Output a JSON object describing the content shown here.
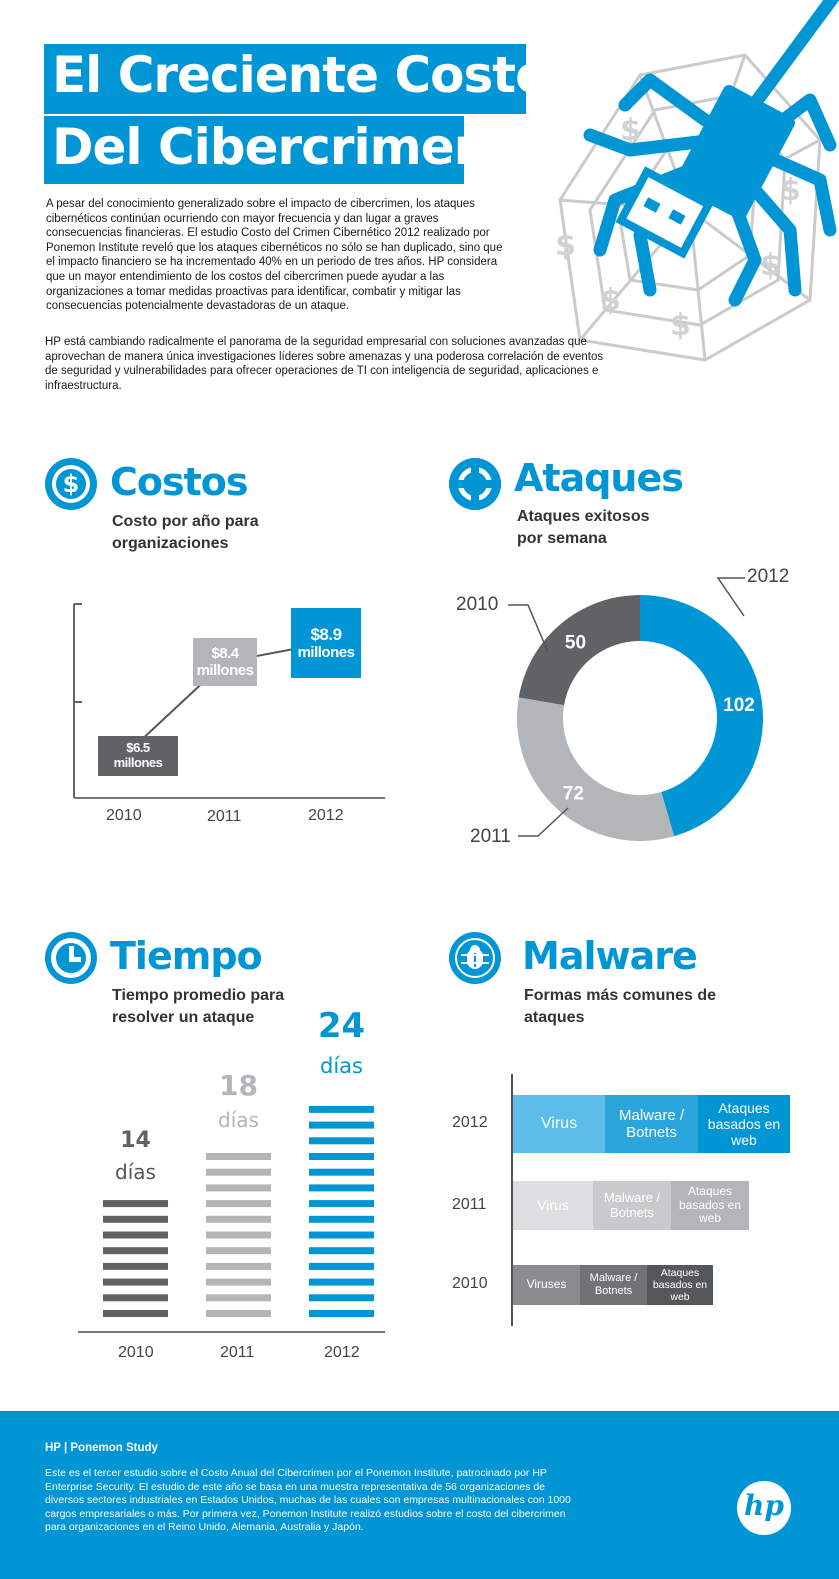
{
  "header": {
    "title_line1": "El Creciente Costo",
    "title_line2": "Del Cibercrimen!"
  },
  "intro": {
    "paragraph1": "A pesar del conocimiento generalizado  sobre el impacto de cibercrimen, los ataques cibernéticos continúan ocurriendo con mayor frecuencia  y dan lugar a graves consecuencias financieras.  El estudio Costo del Crimen Cibernético 2012 realizado por Ponemon Institute reveló que los ataques cibernéticos no sólo se han duplicado, sino que el impacto financiero se ha incrementado 40% en un periodo de tres años. HP considera que un mayor entendimiento de los costos del cibercrimen puede ayudar a las organizaciones a tomar medidas proactivas para identificar, combatir y mitigar las consecuencias potencialmente  devastadoras de un ataque.",
    "paragraph2": "HP está cambiando radicalmente el panorama de la seguridad empresarial con soluciones avanzadas que aprovechan de manera única investigaciones líderes sobre amenazas y una poderosa correlación de eventos de seguridad y vulnerabilidades para ofrecer operaciones de TI con inteligencia de seguridad, aplicaciones e infraestructura."
  },
  "costos": {
    "title": "Costos",
    "subtitle_l1": "Costo por año para",
    "subtitle_l2": "organizaciones",
    "icon": "dollar-icon"
  },
  "ataques": {
    "title": "Ataques",
    "subtitle_l1": "Ataques exitosos",
    "subtitle_l2": "por semana",
    "icon": "crosshair-icon"
  },
  "tiempo": {
    "title": "Tiempo",
    "subtitle_l1": "Tiempo promedio para",
    "subtitle_l2": "resolver un ataque",
    "icon": "clock-icon"
  },
  "malware": {
    "title": "Malware",
    "subtitle_l1": "Formas más comunes de",
    "subtitle_l2": "ataques",
    "icon": "bug-icon"
  },
  "chart_data": [
    {
      "type": "line",
      "categories": [
        "2010",
        "2011",
        "2012"
      ],
      "values": [
        6.5,
        8.4,
        8.9
      ],
      "labels": [
        {
          "amount": "$6.5",
          "unit": "millones"
        },
        {
          "amount": "$8.4",
          "unit": "millones"
        },
        {
          "amount": "$8.9",
          "unit": "millones"
        }
      ],
      "colors": [
        "#5f6366",
        "#b3b6b8",
        "#0096d6"
      ]
    },
    {
      "type": "pie",
      "style": "donut",
      "categories": [
        "2012",
        "2011",
        "2010"
      ],
      "values": [
        102,
        72,
        50
      ],
      "colors": [
        "#0096d6",
        "#b3b6b8",
        "#5f6366"
      ]
    },
    {
      "type": "bar",
      "categories": [
        "2010",
        "2011",
        "2012"
      ],
      "values": [
        14,
        18,
        24
      ],
      "unit": "días",
      "colors": [
        "#5f6366",
        "#b3b6b8",
        "#0096d6"
      ]
    },
    {
      "type": "bar",
      "orientation": "horizontal-stacked",
      "categories": [
        "2012",
        "2011",
        "2010"
      ],
      "rows": [
        {
          "year": "2012",
          "segments": [
            "Virus",
            "Malware / Botnets",
            "Ataques basados en web"
          ],
          "colors": [
            "#5bbde8",
            "#2aa6dd",
            "#0096d6"
          ]
        },
        {
          "year": "2011",
          "segments": [
            "Virus",
            "Malware / Botnets",
            "Ataques basados en web"
          ],
          "colors": [
            "#dcdedf",
            "#c8cacc",
            "#b3b6b8"
          ]
        },
        {
          "year": "2010",
          "segments": [
            "Viruses",
            "Malware / Botnets",
            "Ataques basados en web"
          ],
          "colors": [
            "#8a8d90",
            "#707376",
            "#55585b"
          ]
        }
      ]
    }
  ],
  "footer": {
    "heading": "HP |  Ponemon Study",
    "text": "Este es el tercer estudio sobre el Costo Anual del Cibercrimen  por el Ponemon Institute,  patrocinado  por  HP Enterprise  Security.  El estudio de este año se basa en una muestra representativa  de 56 organizaciones  de diversos sectores industriales  en Estados Unidos,  muchas de las cuales  son empresas multinacionales   con 1000 cargos empresariales  o más.  Por primera vez, Ponemon Institute  realizó  estudios  sobre el costo del cibercrimen  para organizaciones  en el Reino Unido,  Alemania, Australia  y Japón.",
    "logo_text": "hp",
    "brand_color": "#0096d6"
  }
}
